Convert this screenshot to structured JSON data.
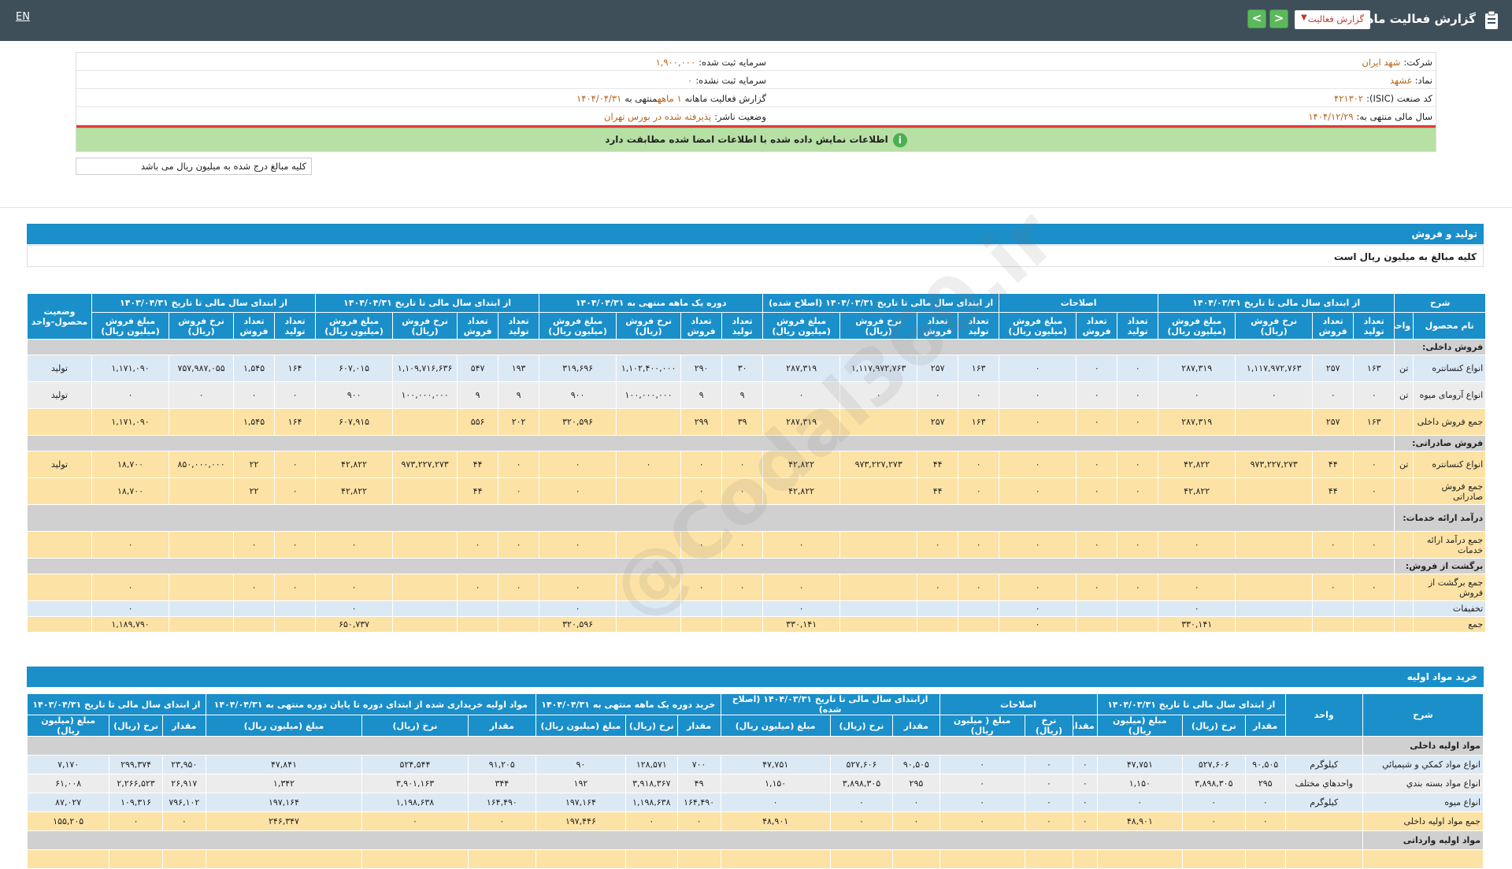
{
  "header": {
    "lang": "EN",
    "title": "گزارش فعالیت ماهانه",
    "select_value": "گزارش فعالیت",
    "prev": "<",
    "next": ">"
  },
  "info": {
    "company_label": "شرکت:",
    "company": "شهد ایران",
    "capital_label": "سرمایه ثبت شده:",
    "capital": "۱,۹۰۰,۰۰۰",
    "symbol_label": "نماد:",
    "symbol": "غشهد",
    "uncapital_label": "سرمایه ثبت نشده:",
    "uncapital": "۰",
    "isic_label": "کد صنعت (ISIC):",
    "isic": "۴۲۱۳۰۲",
    "report_label": "گزارش فعالیت ماهانه",
    "report_period": "۱ ماهه",
    "report_end_label": "منتهی به",
    "report_end": "۱۴۰۴/۰۴/۳۱",
    "fy_label": "سال مالی منتهی به:",
    "fy": "۱۴۰۴/۱۲/۲۹",
    "status_label": "وضعیت ناشر:",
    "status": "پذیرفته شده در بورس تهران",
    "banner": "اطلاعات نمایش داده شده با اطلاعات امضا شده مطابقت دارد",
    "unit_note": "کلیه مبالغ درج شده به میلیون ریال می باشد"
  },
  "watermark": "@Codal360.ir",
  "production": {
    "title": "تولید و فروش",
    "subtitle": "کلیه مبالغ به میلیون ریال است",
    "group_headers": [
      "شرح",
      "از ابتدای سال مالی تا تاریخ ۱۴۰۴/۰۳/۳۱",
      "اصلاحات",
      "از ابتدای سال مالی تا تاریخ ۱۴۰۴/۰۳/۳۱ (اصلاح شده)",
      "دوره یک ماهه منتهی به ۱۴۰۴/۰۴/۳۱",
      "از ابتدای سال مالی تا تاریخ ۱۴۰۴/۰۴/۳۱",
      "از ابتدای سال مالی تا تاریخ ۱۴۰۳/۰۴/۳۱",
      "وضعیت محصول-واحد"
    ],
    "sub_headers": [
      "نام محصول",
      "واحد",
      "تعداد تولید",
      "تعداد فروش",
      "نرخ فروش (ریال)",
      "مبلغ فروش (میلیون ریال)",
      "تعداد تولید",
      "تعداد فروش",
      "مبلغ فروش (میلیون ریال)",
      "تعداد تولید",
      "تعداد فروش",
      "نرخ فروش (ریال)",
      "مبلغ فروش (میلیون ریال)",
      "تعداد تولید",
      "تعداد فروش",
      "نرخ فروش (ریال)",
      "مبلغ فروش (میلیون ریال)",
      "تعداد تولید",
      "تعداد فروش",
      "نرخ فروش (ریال)",
      "مبلغ فروش (میلیون ریال)",
      "تعداد تولید",
      "تعداد فروش",
      "نرخ فروش (ریال)",
      "مبلغ فروش (میلیون ریال)"
    ],
    "rows": [
      {
        "type": "cat",
        "cells": [
          "فروش داخلی:"
        ]
      },
      {
        "type": "blue",
        "cells": [
          "انواع کنسانتره",
          "تن",
          "۱۶۳",
          "۲۵۷",
          "۱,۱۱۷,۹۷۲,۷۶۳",
          "۲۸۷,۳۱۹",
          "۰",
          "۰",
          "۰",
          "۱۶۳",
          "۲۵۷",
          "۱,۱۱۷,۹۷۲,۷۶۳",
          "۲۸۷,۳۱۹",
          "۳۰",
          "۲۹۰",
          "۱,۱۰۲,۴۰۰,۰۰۰",
          "۳۱۹,۶۹۶",
          "۱۹۳",
          "۵۴۷",
          "۱,۱۰۹,۷۱۶,۶۳۶",
          "۶۰۷,۰۱۵",
          "۱۶۴",
          "۱,۵۴۵",
          "۷۵۷,۹۸۷,۰۵۵",
          "۱,۱۷۱,۰۹۰",
          "تولید"
        ]
      },
      {
        "type": "gray",
        "cells": [
          "انواع آرومای میوه",
          "تن",
          "۰",
          "۰",
          "۰",
          "۰",
          "۰",
          "۰",
          "۰",
          "۰",
          "۰",
          "۰",
          "۰",
          "۹",
          "۹",
          "۱۰۰,۰۰۰,۰۰۰",
          "۹۰۰",
          "۹",
          "۹",
          "۱۰۰,۰۰۰,۰۰۰",
          "۹۰۰",
          "۰",
          "۰",
          "۰",
          "۰",
          "تولید"
        ]
      },
      {
        "type": "yellow",
        "cells": [
          "جمع فروش داخلی",
          "",
          "۱۶۳",
          "۲۵۷",
          "",
          "۲۸۷,۳۱۹",
          "۰",
          "۰",
          "۰",
          "۱۶۳",
          "۲۵۷",
          "",
          "۲۸۷,۳۱۹",
          "۳۹",
          "۲۹۹",
          "",
          "۳۲۰,۵۹۶",
          "۲۰۲",
          "۵۵۶",
          "",
          "۶۰۷,۹۱۵",
          "۱۶۴",
          "۱,۵۴۵",
          "",
          "۱,۱۷۱,۰۹۰",
          ""
        ]
      },
      {
        "type": "cat",
        "cells": [
          "فروش صادراتی:"
        ]
      },
      {
        "type": "yellow",
        "cells": [
          "انواع کنسانتره",
          "تن",
          "۰",
          "۴۴",
          "۹۷۳,۲۲۷,۲۷۳",
          "۴۲,۸۲۲",
          "۰",
          "۰",
          "۰",
          "۰",
          "۴۴",
          "۹۷۳,۲۲۷,۲۷۳",
          "۴۲,۸۲۲",
          "۰",
          "۰",
          "۰",
          "۰",
          "۰",
          "۴۴",
          "۹۷۳,۲۲۷,۲۷۳",
          "۴۲,۸۲۲",
          "۰",
          "۲۲",
          "۸۵۰,۰۰۰,۰۰۰",
          "۱۸,۷۰۰",
          "تولید"
        ]
      },
      {
        "type": "yellow",
        "cells": [
          "جمع فروش صادراتی",
          "",
          "۰",
          "۴۴",
          "",
          "۴۲,۸۲۲",
          "۰",
          "۰",
          "۰",
          "۰",
          "۴۴",
          "",
          "۴۲,۸۲۲",
          "۰",
          "۰",
          "",
          "۰",
          "۰",
          "۴۴",
          "",
          "۴۲,۸۲۲",
          "۰",
          "۲۲",
          "",
          "۱۸,۷۰۰",
          ""
        ]
      },
      {
        "type": "cat",
        "cells": [
          "درآمد ارائه خدمات:"
        ]
      },
      {
        "type": "yellow",
        "cells": [
          "جمع درآمد ارائه خدمات",
          "",
          "۰",
          "۰",
          "",
          "۰",
          "۰",
          "۰",
          "۰",
          "۰",
          "۰",
          "",
          "۰",
          "۰",
          "۰",
          "",
          "۰",
          "۰",
          "۰",
          "",
          "۰",
          "۰",
          "۰",
          "",
          "۰",
          ""
        ]
      },
      {
        "type": "cat",
        "cells": [
          "برگشت از فروش:"
        ]
      },
      {
        "type": "yellow",
        "cells": [
          "جمع برگشت از فروش",
          "",
          "۰",
          "۰",
          "",
          "۰",
          "۰",
          "۰",
          "۰",
          "۰",
          "۰",
          "",
          "۰",
          "۰",
          "۰",
          "",
          "۰",
          "۰",
          "۰",
          "",
          "۰",
          "۰",
          "۰",
          "",
          "۰",
          ""
        ]
      },
      {
        "type": "blue",
        "cells": [
          "تخفیفات",
          "",
          "",
          "",
          "",
          "۰",
          "",
          "",
          "۰",
          "",
          "",
          "",
          "۰",
          "",
          "",
          "",
          "۰",
          "",
          "",
          "",
          "۰",
          "",
          "",
          "",
          "۰",
          ""
        ]
      },
      {
        "type": "yellow",
        "cells": [
          "جمع",
          "",
          "",
          "",
          "",
          "۳۳۰,۱۴۱",
          "",
          "",
          "۰",
          "",
          "",
          "",
          "۳۳۰,۱۴۱",
          "",
          "",
          "",
          "۳۲۰,۵۹۶",
          "",
          "",
          "",
          "۶۵۰,۷۳۷",
          "",
          "",
          "",
          "۱,۱۸۹,۷۹۰",
          ""
        ]
      }
    ]
  },
  "materials": {
    "title": "خرید مواد اولیه",
    "group_headers": [
      "شرح",
      "واحد",
      "از ابتدای سال مالی تا تاریخ ۱۴۰۴/۰۳/۳۱",
      "اصلاحات",
      "ازابتدای سال مالی تا تاریخ ۱۴۰۴/۰۳/۳۱ (اصلاح شده)",
      "خرید دوره یک ماهه منتهی به ۱۴۰۴/۰۴/۳۱",
      "مواد اولیه خریداری شده از ابتدای دوره تا پایان دوره منتهی به ۱۴۰۴/۰۴/۳۱",
      "از ابتدای سال مالی تا تاریخ ۱۴۰۳/۰۴/۳۱"
    ],
    "sub_headers": [
      "مقدار",
      "نرخ (ریال)",
      "مبلغ (میلیون ریال)",
      "مقدار",
      "نرخ (ریال)",
      "مبلغ ( میلیون ریال)",
      "مقدار",
      "نرخ (ریال)",
      "مبلغ (میلیون ریال)",
      "مقدار",
      "نرخ (ریال)",
      "مبلغ (میلیون ریال)",
      "مقدار",
      "نرخ (ریال)",
      "مبلغ (میلیون ریال)",
      "مقدار",
      "نرخ (ریال)",
      "مبلغ (میلیون ریال)"
    ],
    "rows": [
      {
        "type": "cat",
        "cells": [
          "مواد اولیه داخلی"
        ]
      },
      {
        "type": "blue",
        "cells": [
          "انواع مواد کمکي و شیمیائي",
          "کیلوگرم",
          "۹۰,۵۰۵",
          "۵۲۷,۶۰۶",
          "۴۷,۷۵۱",
          "۰",
          "۰",
          "۰",
          "۹۰,۵۰۵",
          "۵۲۷,۶۰۶",
          "۴۷,۷۵۱",
          "۷۰۰",
          "۱۲۸,۵۷۱",
          "۹۰",
          "۹۱,۲۰۵",
          "۵۲۴,۵۴۴",
          "۴۷,۸۴۱",
          "۲۳,۹۵۰",
          "۲۹۹,۳۷۴",
          "۷,۱۷۰"
        ]
      },
      {
        "type": "gray",
        "cells": [
          "انواع مواد بسته بندي",
          "واحدهاي مختلف",
          "۲۹۵",
          "۳,۸۹۸,۳۰۵",
          "۱,۱۵۰",
          "۰",
          "۰",
          "۰",
          "۲۹۵",
          "۳,۸۹۸,۳۰۵",
          "۱,۱۵۰",
          "۴۹",
          "۳,۹۱۸,۳۶۷",
          "۱۹۲",
          "۳۴۴",
          "۳,۹۰۱,۱۶۳",
          "۱,۳۴۲",
          "۲۶,۹۱۷",
          "۲,۲۶۶,۵۲۳",
          "۶۱,۰۰۸"
        ]
      },
      {
        "type": "blue",
        "cells": [
          "انواع میوه",
          "کیلوگرم",
          "۰",
          "۰",
          "۰",
          "۰",
          "۰",
          "۰",
          "۰",
          "۰",
          "۰",
          "۱۶۴,۴۹۰",
          "۱,۱۹۸,۶۳۸",
          "۱۹۷,۱۶۴",
          "۱۶۴,۴۹۰",
          "۱,۱۹۸,۶۳۸",
          "۱۹۷,۱۶۴",
          "۷۹۶,۱۰۲",
          "۱۰۹,۳۱۶",
          "۸۷,۰۲۷"
        ]
      },
      {
        "type": "yellow",
        "cells": [
          "جمع مواد اولیه داخلی",
          "",
          "۰",
          "۰",
          "۴۸,۹۰۱",
          "۰",
          "۰",
          "۰",
          "۰",
          "۰",
          "۴۸,۹۰۱",
          "۰",
          "۰",
          "۱۹۷,۴۴۶",
          "۰",
          "۰",
          "۲۴۶,۳۴۷",
          "۰",
          "۰",
          "۱۵۵,۲۰۵"
        ]
      },
      {
        "type": "cat",
        "cells": [
          "مواد اولیه وارداتی"
        ]
      },
      {
        "type": "yellow",
        "cells": [
          "",
          "",
          "",
          "",
          "",
          "",
          "",
          "",
          "",
          "",
          "",
          "",
          "",
          "",
          "",
          "",
          "",
          "",
          "",
          ""
        ]
      }
    ]
  }
}
